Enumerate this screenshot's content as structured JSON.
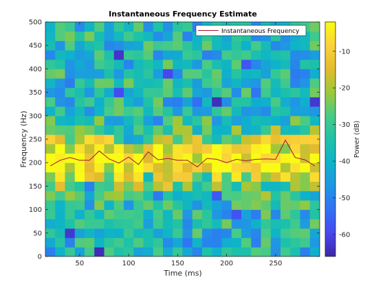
{
  "chart_data": {
    "type": "heatmap",
    "title": "Instantaneous Frequency Estimate",
    "xlabel": "Time (ms)",
    "ylabel": "Frequency (Hz)",
    "xlim": [
      15,
      295
    ],
    "ylim": [
      0,
      500
    ],
    "xticks": [
      50,
      100,
      150,
      200,
      250
    ],
    "yticks": [
      0,
      50,
      100,
      150,
      200,
      250,
      300,
      350,
      400,
      450,
      500
    ],
    "grid": false,
    "legend_position": "top-right",
    "colormap": "parula",
    "colorbar": {
      "label": "Power (dB)",
      "lim": [
        -66,
        -2
      ],
      "ticks": [
        -60,
        -50,
        -40,
        -30,
        -20,
        -10
      ]
    },
    "time_bins_ms": [
      20,
      30,
      40,
      50,
      60,
      70,
      80,
      90,
      100,
      110,
      120,
      130,
      140,
      150,
      160,
      170,
      180,
      190,
      200,
      210,
      220,
      230,
      240,
      250,
      260,
      270,
      280,
      290
    ],
    "frequency_bin_width_hz": 20,
    "series": [
      {
        "name": "Instantaneous Frequency",
        "color": "#A2142F",
        "x": [
          20,
          30,
          40,
          50,
          60,
          70,
          80,
          90,
          100,
          110,
          120,
          130,
          140,
          150,
          160,
          170,
          180,
          190,
          200,
          210,
          220,
          230,
          240,
          250,
          260,
          270,
          280,
          290
        ],
        "y": [
          193,
          205,
          211,
          205,
          205,
          225,
          208,
          199,
          212,
          196,
          223,
          206,
          209,
          205,
          205,
          191,
          209,
          207,
          200,
          207,
          204,
          207,
          208,
          207,
          248,
          211,
          206,
          193
        ]
      }
    ]
  }
}
